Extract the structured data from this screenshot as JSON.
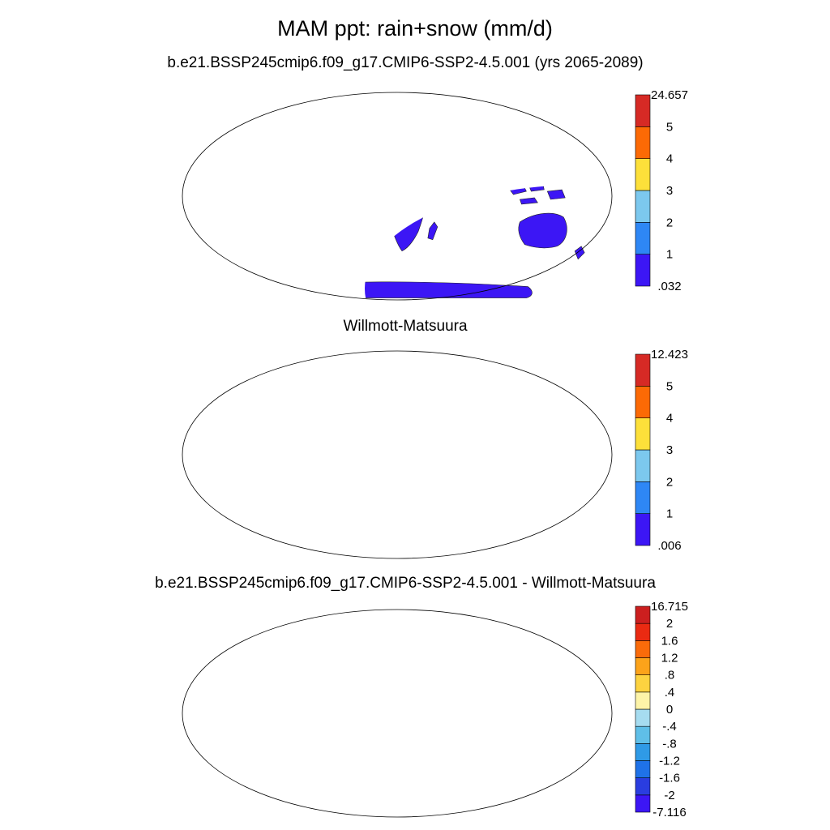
{
  "figure": {
    "title": "MAM ppt: rain+snow (mm/d)"
  },
  "panels": [
    {
      "id": "model",
      "title": "b.e21.BSSP245cmip6.f09_g17.CMIP6-SSP2-4.5.001 (yrs 2065-2089)",
      "colorbar": {
        "colors": [
          "#3c16f5",
          "#2e87f5",
          "#7cc8ee",
          "#fde03a",
          "#fc6a05",
          "#d62a25"
        ],
        "labels": [
          ".032",
          "1",
          "2",
          "3",
          "4",
          "5",
          "24.657"
        ]
      }
    },
    {
      "id": "obs",
      "title": "Willmott-Matsuura",
      "colorbar": {
        "colors": [
          "#3c16f5",
          "#2e87f5",
          "#7cc8ee",
          "#fde03a",
          "#fc6a05",
          "#d62a25"
        ],
        "labels": [
          ".006",
          "1",
          "2",
          "3",
          "4",
          "5",
          "12.423"
        ]
      }
    },
    {
      "id": "diff",
      "title": "b.e21.BSSP245cmip6.f09_g17.CMIP6-SSP2-4.5.001 - Willmott-Matsuura",
      "colorbar": {
        "colors": [
          "#3c16f5",
          "#2a3de0",
          "#1f72e8",
          "#2f9ae6",
          "#5fbfe8",
          "#a6dcf0",
          "#fdf4a8",
          "#fdd340",
          "#fca31a",
          "#fa6b0a",
          "#ea2a12",
          "#cc1f1f"
        ],
        "labels": [
          "-7.116",
          "-2",
          "-1.6",
          "-1.2",
          "-.8",
          "-.4",
          "0",
          ".4",
          ".8",
          "1.2",
          "1.6",
          "2",
          "16.715"
        ]
      }
    }
  ]
}
